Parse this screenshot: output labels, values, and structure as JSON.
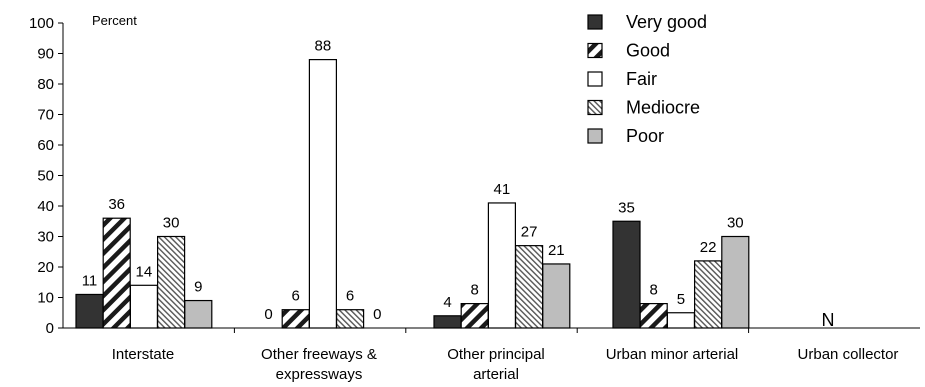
{
  "chart_data": {
    "type": "bar",
    "ylabel": "Percent",
    "ylim": [
      0,
      100
    ],
    "yticks": [
      0,
      10,
      20,
      30,
      40,
      50,
      60,
      70,
      80,
      90,
      100
    ],
    "categories": [
      "Interstate",
      "Other freeways & expressways",
      "Other principal arterial",
      "Urban minor arterial",
      "Urban collector"
    ],
    "category_lines": [
      [
        "Interstate"
      ],
      [
        "Other freeways &",
        "expressways"
      ],
      [
        "Other principal",
        "arterial"
      ],
      [
        "Urban minor arterial"
      ],
      [
        "Urban collector"
      ]
    ],
    "series": [
      {
        "name": "Very good",
        "values": [
          11,
          0,
          4,
          35,
          null
        ],
        "labels": [
          "11",
          "0",
          "4",
          "35",
          ""
        ],
        "fill": "#333333",
        "pattern": "solid"
      },
      {
        "name": "Good",
        "values": [
          36,
          6,
          8,
          8,
          null
        ],
        "labels": [
          "36",
          "6",
          "8",
          "8",
          ""
        ],
        "fill": "#ffffff",
        "pattern": "wide-diagonal"
      },
      {
        "name": "Fair",
        "values": [
          14,
          88,
          41,
          5,
          null
        ],
        "labels": [
          "14",
          "88",
          "41",
          "5",
          ""
        ],
        "fill": "#ffffff",
        "pattern": "none"
      },
      {
        "name": "Mediocre",
        "values": [
          30,
          6,
          27,
          22,
          null
        ],
        "labels": [
          "30",
          "6",
          "27",
          "22",
          ""
        ],
        "fill": "#ffffff",
        "pattern": "fine-diagonal"
      },
      {
        "name": "Poor",
        "values": [
          9,
          0,
          21,
          30,
          null
        ],
        "labels": [
          "9",
          "0",
          "21",
          "30",
          ""
        ],
        "fill": "#bdbdbd",
        "pattern": "solid"
      }
    ],
    "annotations": [
      {
        "category": "Urban collector",
        "text": "N"
      }
    ],
    "legend_position": "top-right",
    "grid": false
  }
}
